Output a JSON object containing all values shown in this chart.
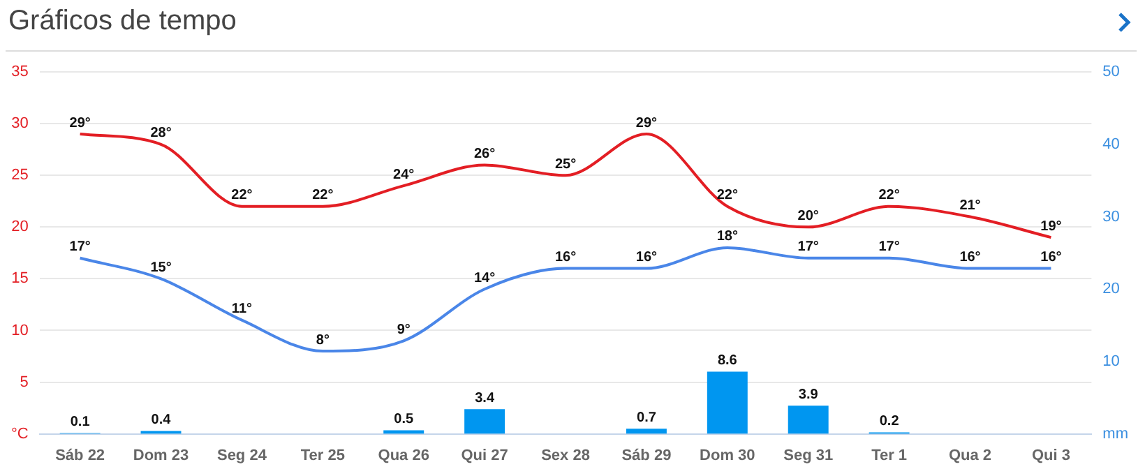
{
  "chart_data": {
    "type": "line",
    "title": "Gráficos de tempo",
    "categories": [
      "Sáb 22",
      "Dom 23",
      "Seg 24",
      "Ter 25",
      "Qua 26",
      "Qui 27",
      "Sex 28",
      "Sáb 29",
      "Dom 30",
      "Seg 31",
      "Ter 1",
      "Qua 2",
      "Qui 3"
    ],
    "series": [
      {
        "type": "bar",
        "axis": "y2",
        "color": "#0096f0",
        "values": [
          0.1,
          0.4,
          null,
          null,
          0.5,
          3.4,
          null,
          0.7,
          8.6,
          3.9,
          0.2,
          null,
          null
        ],
        "value_labels": [
          "0.1",
          "0.4",
          null,
          null,
          "0.5",
          "3.4",
          null,
          "0.7",
          "8.6",
          "3.9",
          "0.2",
          null,
          null
        ]
      },
      {
        "axis": "y",
        "color": "#e31e24",
        "values": [
          29,
          28,
          22,
          22,
          24,
          26,
          25,
          29,
          22,
          20,
          22,
          21,
          19
        ],
        "value_labels": [
          "29°",
          "28°",
          "22°",
          "22°",
          "24°",
          "26°",
          "25°",
          "29°",
          "22°",
          "20°",
          "22°",
          "21°",
          "19°"
        ]
      },
      {
        "axis": "y",
        "color": "#4a86e8",
        "values": [
          17,
          15,
          11,
          8,
          9,
          14,
          16,
          16,
          18,
          17,
          17,
          16,
          16
        ],
        "value_labels": [
          "17°",
          "15°",
          "11°",
          "8°",
          "9°",
          "14°",
          "16°",
          "16°",
          "18°",
          "17°",
          "17°",
          "16°",
          "16°"
        ]
      }
    ],
    "ylim": [
      0,
      35
    ],
    "yticks": [
      {
        "value": 0,
        "label": "°C"
      },
      5,
      10,
      15,
      20,
      25,
      30,
      35
    ],
    "y2lim": [
      0,
      50
    ],
    "y2ticks": [
      {
        "value": 0,
        "label": "mm"
      },
      10,
      20,
      30,
      40,
      50
    ],
    "grid": "y",
    "legend": false,
    "marker": "none",
    "line_style": "solid"
  }
}
